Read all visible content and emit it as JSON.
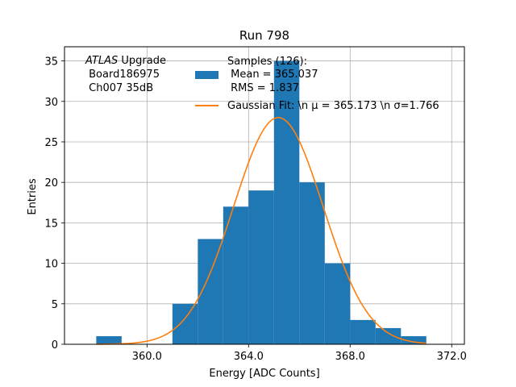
{
  "chart_data": {
    "type": "bar",
    "title": "Run 798",
    "xlabel": "Energy [ADC Counts]",
    "ylabel": "Entries",
    "xlim": [
      356.75,
      372.5
    ],
    "ylim": [
      0,
      36.75
    ],
    "xticks": [
      360.0,
      364.0,
      368.0,
      372.0
    ],
    "xtick_labels": [
      "360.0",
      "364.0",
      "368.0",
      "372.0"
    ],
    "yticks": [
      0,
      5,
      10,
      15,
      20,
      25,
      30,
      35
    ],
    "ytick_labels": [
      "0",
      "5",
      "10",
      "15",
      "20",
      "25",
      "30",
      "35"
    ],
    "grid": true,
    "bins": [
      {
        "x0": 358,
        "x1": 359,
        "count": 1
      },
      {
        "x0": 359,
        "x1": 360,
        "count": 0
      },
      {
        "x0": 360,
        "x1": 361,
        "count": 0
      },
      {
        "x0": 361,
        "x1": 362,
        "count": 5
      },
      {
        "x0": 362,
        "x1": 363,
        "count": 13
      },
      {
        "x0": 363,
        "x1": 364,
        "count": 17
      },
      {
        "x0": 364,
        "x1": 365,
        "count": 19
      },
      {
        "x0": 365,
        "x1": 366,
        "count": 35
      },
      {
        "x0": 366,
        "x1": 367,
        "count": 20
      },
      {
        "x0": 367,
        "x1": 368,
        "count": 10
      },
      {
        "x0": 368,
        "x1": 369,
        "count": 3
      },
      {
        "x0": 369,
        "x1": 370,
        "count": 2
      },
      {
        "x0": 370,
        "x1": 371,
        "count": 1
      }
    ],
    "fit": {
      "mu": 365.173,
      "sigma": 1.766,
      "amplitude": 28.0,
      "x_range": [
        358,
        371
      ]
    },
    "series": [
      {
        "name": "Samples (126):\n Mean = 365.037\n RMS = 1.837",
        "color": "#1f77b4"
      },
      {
        "name": "Gaussian Fit: \\n μ = 365.173 \\n σ=1.766",
        "color": "#ff7f0e"
      }
    ],
    "legend": {
      "placement": "top-right",
      "hist_lines": [
        "Samples (126):",
        " Mean = 365.037",
        " RMS = 1.837"
      ],
      "fit_label": "Gaussian Fit: \\n μ = 365.173 \\n σ=1.766"
    },
    "annotation": {
      "atlas_italic": "ATLAS",
      "atlas_rest": " Upgrade",
      "line2": " Board186975",
      "line3": " Ch007 35dB"
    }
  }
}
